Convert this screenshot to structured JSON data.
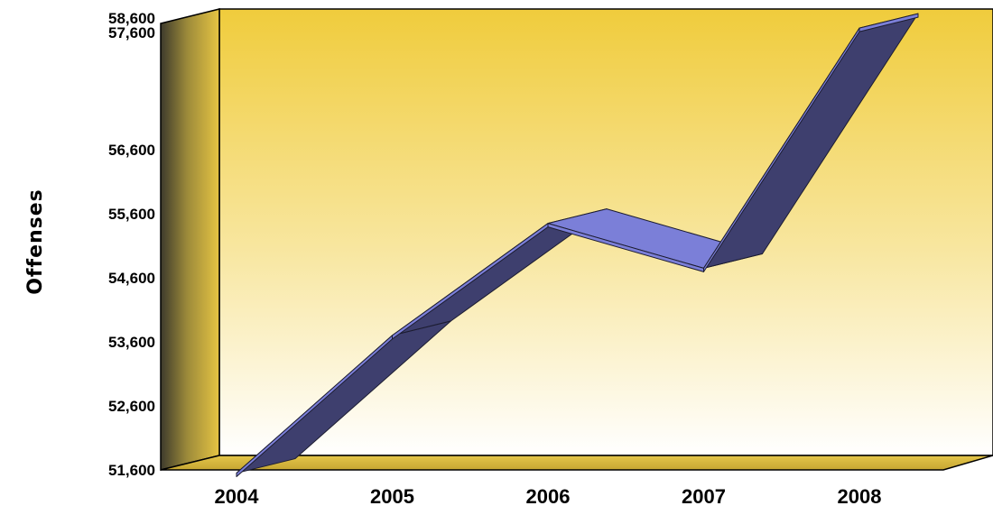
{
  "chart_data": {
    "type": "line",
    "style": "3d-ribbon",
    "title": "",
    "xlabel": "",
    "ylabel": "Offenses",
    "categories": [
      "2004",
      "2005",
      "2006",
      "2007",
      "2008"
    ],
    "series": [
      {
        "values": [
          51550,
          53700,
          55450,
          54750,
          58500
        ]
      }
    ],
    "ylim": [
      51600,
      58600
    ],
    "yticks": [
      "51,600",
      "52,600",
      "53,600",
      "54,600",
      "55,600",
      "56,600",
      "57,600",
      "58,600"
    ],
    "grid": false,
    "legend": "none",
    "colors": {
      "back_wall_top": "#f0cc3c",
      "back_wall_bottom": "#ffffff",
      "side_wall": "#c9ad38",
      "floor": "#d7b840",
      "ribbon_top": "#7b7fd8",
      "ribbon_face": "#3e3f6e"
    }
  }
}
